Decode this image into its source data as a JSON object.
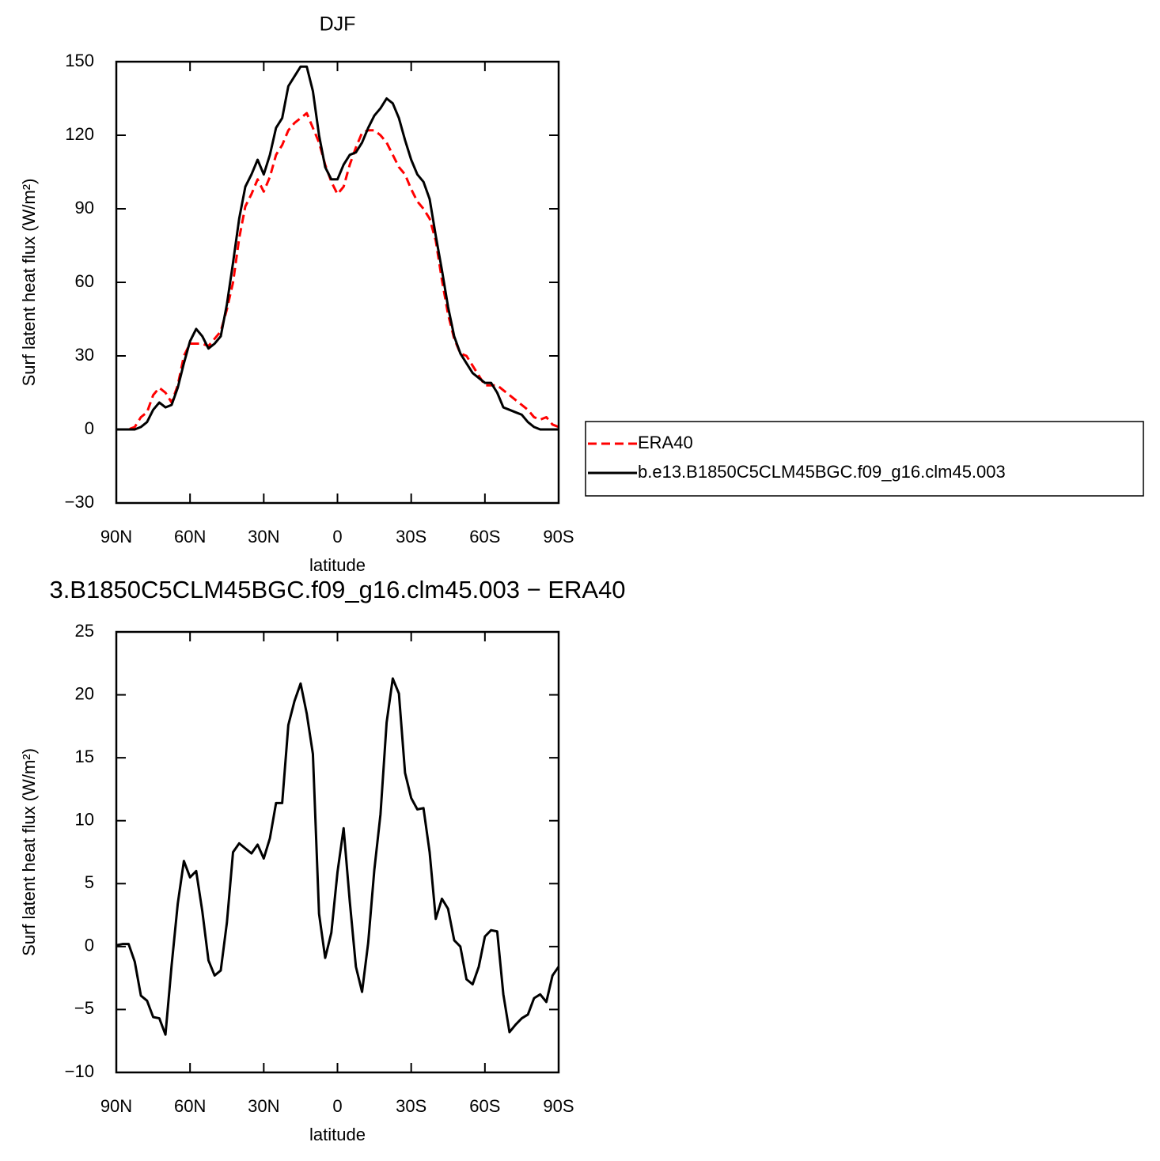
{
  "chart_data": [
    {
      "type": "line",
      "title": "DJF",
      "xlabel": "latitude",
      "ylabel": "Surf latent heat flux (W/m²)",
      "x": [
        90,
        87.5,
        85,
        82.5,
        80,
        77.5,
        75,
        72.5,
        70,
        67.5,
        65,
        62.5,
        60,
        57.5,
        55,
        52.5,
        50,
        47.5,
        45,
        42.5,
        40,
        37.5,
        35,
        32.5,
        30,
        27.5,
        25,
        22.5,
        20,
        17.5,
        15,
        12.5,
        10,
        7.5,
        5,
        2.5,
        0,
        -2.5,
        -5,
        -7.5,
        -10,
        -12.5,
        -15,
        -17.5,
        -20,
        -22.5,
        -25,
        -27.5,
        -30,
        -32.5,
        -35,
        -37.5,
        -40,
        -42.5,
        -45,
        -47.5,
        -50,
        -52.5,
        -55,
        -57.5,
        -60,
        -62.5,
        -65,
        -67.5,
        -70,
        -72.5,
        -75,
        -77.5,
        -80,
        -82.5,
        -85,
        -87.5,
        -90
      ],
      "series": [
        {
          "name": "ERA40",
          "color": "#ff0000",
          "line_style": "dashed",
          "values": [
            0,
            0,
            0,
            1,
            5,
            7,
            14,
            17,
            15,
            11,
            18,
            30,
            35,
            35,
            35,
            34,
            37,
            40,
            49,
            60,
            78,
            91,
            96,
            102,
            97,
            103,
            112,
            116,
            122,
            125,
            127,
            129,
            123,
            117,
            108,
            101,
            96,
            99,
            108,
            115,
            121,
            122,
            122,
            120,
            117,
            112,
            107,
            104,
            98,
            93,
            90,
            86,
            77,
            61,
            47,
            37,
            31,
            30,
            26,
            22,
            18,
            18,
            18,
            16,
            14,
            12,
            10,
            8,
            5,
            4,
            5,
            2,
            1
          ]
        },
        {
          "name": "b.e13.B1850C5CLM45BGC.f09_g16.clm45.003",
          "color": "#000000",
          "line_style": "solid",
          "values": [
            0,
            0,
            0,
            0,
            1,
            3,
            8,
            11,
            9,
            10,
            17,
            27,
            36,
            41,
            38,
            33,
            35,
            38,
            51,
            68,
            86,
            99,
            104,
            110,
            104,
            112,
            123,
            127,
            140,
            144,
            148,
            148,
            138,
            120,
            107,
            102,
            102,
            108,
            112,
            113,
            117,
            123,
            128,
            131,
            135,
            133,
            127,
            118,
            110,
            104,
            101,
            94,
            79,
            65,
            50,
            38,
            31,
            27,
            23,
            21,
            19,
            19,
            15,
            9,
            8,
            7,
            6,
            3,
            1,
            0,
            0,
            0,
            0
          ]
        }
      ],
      "xlim": [
        90,
        -90
      ],
      "xticks": [
        {
          "value": 90,
          "label": "90N"
        },
        {
          "value": 60,
          "label": "60N"
        },
        {
          "value": 30,
          "label": "30N"
        },
        0,
        {
          "value": -30,
          "label": "30S"
        },
        {
          "value": -60,
          "label": "60S"
        },
        {
          "value": -90,
          "label": "90S"
        }
      ],
      "ylim": [
        -30,
        150
      ],
      "yticks": [
        {
          "value": -30,
          "label": "−30"
        },
        0,
        30,
        60,
        90,
        120,
        150
      ],
      "legend": "right"
    },
    {
      "type": "line",
      "title": "3.B1850C5CLM45BGC.f09_g16.clm45.003 − ERA40",
      "xlabel": "latitude",
      "ylabel": "Surf latent heat flux (W/m²)",
      "x": [
        90,
        87.5,
        85,
        82.5,
        80,
        77.5,
        75,
        72.5,
        70,
        67.5,
        65,
        62.5,
        60,
        57.5,
        55,
        52.5,
        50,
        47.5,
        45,
        42.5,
        40,
        37.5,
        35,
        32.5,
        30,
        27.5,
        25,
        22.5,
        20,
        17.5,
        15,
        12.5,
        10,
        7.5,
        5,
        2.5,
        0,
        -2.5,
        -5,
        -7.5,
        -10,
        -12.5,
        -15,
        -17.5,
        -20,
        -22.5,
        -25,
        -27.5,
        -30,
        -32.5,
        -35,
        -37.5,
        -40,
        -42.5,
        -45,
        -47.5,
        -50,
        -52.5,
        -55,
        -57.5,
        -60,
        -62.5,
        -65,
        -67.5,
        -70,
        -72.5,
        -75,
        -77.5,
        -80,
        -82.5,
        -85,
        -87.5,
        -90
      ],
      "series": [
        {
          "color": "#000000",
          "line_style": "solid",
          "values": [
            0.1,
            0.2,
            0.2,
            -1.2,
            -3.9,
            -4.3,
            -5.6,
            -5.7,
            -7.0,
            -1.5,
            3.4,
            6.8,
            5.5,
            6.0,
            2.8,
            -1.1,
            -2.3,
            -1.9,
            1.9,
            7.5,
            8.2,
            7.8,
            7.4,
            8.1,
            7.0,
            8.6,
            11.4,
            11.4,
            17.6,
            19.5,
            20.9,
            18.5,
            15.3,
            2.6,
            -0.9,
            1.1,
            5.9,
            9.4,
            3.6,
            -1.6,
            -3.6,
            0.3,
            6.1,
            10.5,
            17.8,
            21.3,
            20.1,
            13.8,
            11.8,
            10.9,
            11.0,
            7.5,
            2.2,
            3.8,
            3.0,
            0.5,
            0,
            -2.6,
            -3.0,
            -1.6,
            0.8,
            1.3,
            1.2,
            -3.8,
            -6.8,
            -6.2,
            -5.7,
            -5.4,
            -4.1,
            -3.8,
            -4.4,
            -2.3,
            -1.6
          ]
        }
      ],
      "xlim": [
        90,
        -90
      ],
      "xticks": [
        {
          "value": 90,
          "label": "90N"
        },
        {
          "value": 60,
          "label": "60N"
        },
        {
          "value": 30,
          "label": "30N"
        },
        0,
        {
          "value": -30,
          "label": "30S"
        },
        {
          "value": -60,
          "label": "60S"
        },
        {
          "value": -90,
          "label": "90S"
        }
      ],
      "ylim": [
        -10,
        25
      ],
      "yticks": [
        {
          "value": -10,
          "label": "−10"
        },
        {
          "value": -5,
          "label": "−5"
        },
        0,
        5,
        10,
        15,
        20,
        25
      ]
    }
  ]
}
